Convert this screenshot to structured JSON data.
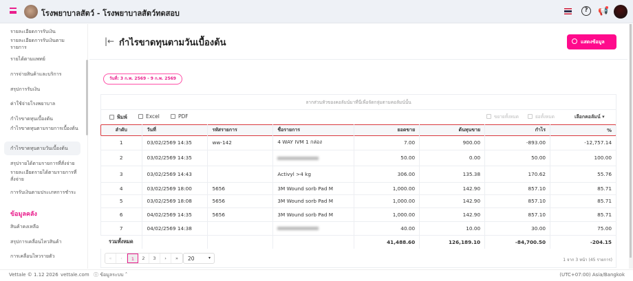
{
  "header": {
    "title": "โรงพยาบาลสัตว์ - โรงพยาบาลสัตว์ทดสอบ"
  },
  "sidebar": {
    "items": [
      {
        "label": "รายละเอียดการรับเงิน"
      },
      {
        "label": "รายละเอียดการรับเงินตามรายการ"
      },
      {
        "label": "รายได้ตามแพทย์"
      },
      {
        "label": "การจ่ายสินค้าและบริการ"
      },
      {
        "label": "สรุปการรับเงิน"
      },
      {
        "label": "ค่าใช้จ่ายโรงพยาบาล"
      },
      {
        "label": "กำไรขาดทุนเบื้องต้น"
      },
      {
        "label": "กำไรขาดทุนตามรายการเบื้องต้น"
      },
      {
        "label": "กำไรขาดทุนตามวันเบื้องต้น",
        "active": true
      },
      {
        "label": "สรุปรายได้ตามรายการที่สั่งจ่าย"
      },
      {
        "label": "รายละเอียดรายได้ตามรายการที่สั่งจ่าย"
      },
      {
        "label": "การรับเงินตามประเภทการชำระ"
      }
    ],
    "section2": {
      "title": "ข้อมูลคลัง",
      "items": [
        {
          "label": "สินค้าคงเหลือ"
        },
        {
          "label": "สรุปการเคลื่อนไหวสินค้า"
        },
        {
          "label": "การเคลื่อนไหวรายตัว"
        }
      ]
    }
  },
  "page": {
    "title": "กำไรขาดทุนตามวันเบื้องต้น",
    "show_button": "แสดงข้อมูล",
    "date_range": "วันที่: 3 ก.พ. 2569 - 9 ก.พ. 2569"
  },
  "grid": {
    "group_hint": "ลากส่วนหัวของคอลัมน์มาที่นี่เพื่อจัดกลุ่มตามคอลัมน์นั้น",
    "toolbar": {
      "print": "พิมพ์",
      "excel": "Excel",
      "pdf": "PDF",
      "expand_all": "ขยายทั้งหมด",
      "collapse_all": "ย่อทั้งหมด",
      "choose_columns": "เลือกคอลัมน์"
    },
    "columns": [
      "ลำดับ",
      "วันที่",
      "รหัสรายการ",
      "ชื่อรายการ",
      "ยอดขาย",
      "ต้นทุนขาย",
      "กำไร",
      "%"
    ],
    "rows": [
      [
        "1",
        "03/02/2569 14:35",
        "ww-142",
        "4 WAY IVM 1 กล่อง",
        "7.00",
        "900.00",
        "-893.00",
        "-12,757.14"
      ],
      [
        "2",
        "03/02/2569 14:35",
        "",
        "",
        "50.00",
        "0.00",
        "50.00",
        "100.00"
      ],
      [
        "3",
        "03/02/2569 14:43",
        "",
        "Activyl >4 kg",
        "306.00",
        "135.38",
        "170.62",
        "55.76"
      ],
      [
        "4",
        "03/02/2569 18:00",
        "5656",
        "3M Wound sorb Pad M",
        "1,000.00",
        "142.90",
        "857.10",
        "85.71"
      ],
      [
        "5",
        "03/02/2569 18:08",
        "5656",
        "3M Wound sorb Pad M",
        "1,000.00",
        "142.90",
        "857.10",
        "85.71"
      ],
      [
        "6",
        "04/02/2569 14:35",
        "5656",
        "3M Wound sorb Pad M",
        "1,000.00",
        "142.90",
        "857.10",
        "85.71"
      ],
      [
        "7",
        "04/02/2569 14:38",
        "",
        "",
        "40.00",
        "10.00",
        "30.00",
        "75.00"
      ]
    ],
    "totals": {
      "label": "รวมทั้งหมด",
      "sales": "41,488.60",
      "cost": "126,189.10",
      "profit": "-84,700.50",
      "percent": "-204.15"
    },
    "pager": {
      "first": "«",
      "prev": "‹",
      "pages": [
        "1",
        "2",
        "3"
      ],
      "current": "1",
      "next": "›",
      "last": "»",
      "page_size": "20",
      "info": "1 จาก 3 หน้า (45 รายการ)"
    }
  },
  "footer": {
    "version": "Vettale © 1.12 2026",
    "site": "vettale.com",
    "sysinfo": "ข้อมูลระบบ",
    "timezone": "(UTC+07:00) Asia/Bangkok"
  },
  "colors": {
    "accent": "#ff0a8c",
    "header_outline": "#d9383e"
  }
}
